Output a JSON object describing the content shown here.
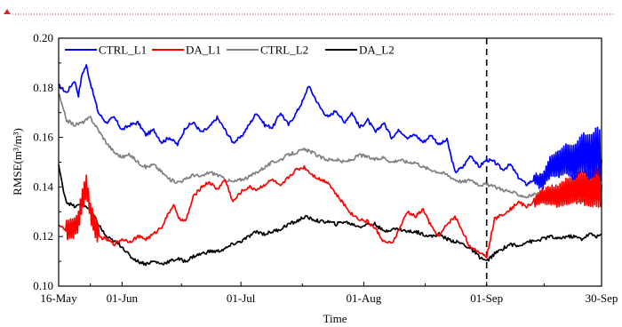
{
  "chart_data": {
    "type": "line",
    "xlabel": "Time",
    "ylabel": "RMSE(m³/m³)",
    "ylim": [
      0.1,
      0.2
    ],
    "yticks": [
      0.1,
      0.12,
      0.14,
      0.16,
      0.18,
      0.2
    ],
    "ytick_labels": [
      "0.10",
      "0.12",
      "0.14",
      "0.16",
      "0.18",
      "0.20"
    ],
    "xlim": [
      "16-May",
      "30-Sep"
    ],
    "xticks": [
      {
        "x": 0,
        "label": "16-May"
      },
      {
        "x": 16,
        "label": "01-Jun"
      },
      {
        "x": 46,
        "label": "01-Jul"
      },
      {
        "x": 77,
        "label": "01-Aug"
      },
      {
        "x": 108,
        "label": "01-Sep"
      },
      {
        "x": 137,
        "label": "30-Sep"
      }
    ],
    "vline": {
      "x": 108,
      "label": "01-Sep"
    },
    "grid": false,
    "legend": {
      "placement": "top",
      "orientation": "horizontal"
    },
    "series": [
      {
        "name": "CTRL_L1",
        "color": "#0000ff",
        "points": [
          [
            0,
            0.181
          ],
          [
            2,
            0.178
          ],
          [
            4,
            0.183
          ],
          [
            5,
            0.177
          ],
          [
            6,
            0.186
          ],
          [
            7,
            0.189
          ],
          [
            8,
            0.182
          ],
          [
            10,
            0.17
          ],
          [
            12,
            0.166
          ],
          [
            14,
            0.168
          ],
          [
            16,
            0.163
          ],
          [
            18,
            0.165
          ],
          [
            20,
            0.166
          ],
          [
            22,
            0.161
          ],
          [
            24,
            0.163
          ],
          [
            26,
            0.158
          ],
          [
            28,
            0.16
          ],
          [
            30,
            0.157
          ],
          [
            32,
            0.164
          ],
          [
            34,
            0.166
          ],
          [
            36,
            0.162
          ],
          [
            38,
            0.164
          ],
          [
            40,
            0.168
          ],
          [
            42,
            0.163
          ],
          [
            44,
            0.158
          ],
          [
            46,
            0.16
          ],
          [
            48,
            0.165
          ],
          [
            50,
            0.17
          ],
          [
            52,
            0.165
          ],
          [
            54,
            0.164
          ],
          [
            56,
            0.17
          ],
          [
            58,
            0.165
          ],
          [
            60,
            0.17
          ],
          [
            62,
            0.176
          ],
          [
            63,
            0.181
          ],
          [
            64,
            0.178
          ],
          [
            66,
            0.172
          ],
          [
            68,
            0.168
          ],
          [
            70,
            0.171
          ],
          [
            72,
            0.166
          ],
          [
            74,
            0.17
          ],
          [
            76,
            0.164
          ],
          [
            78,
            0.167
          ],
          [
            80,
            0.162
          ],
          [
            82,
            0.166
          ],
          [
            84,
            0.16
          ],
          [
            86,
            0.163
          ],
          [
            88,
            0.16
          ],
          [
            90,
            0.161
          ],
          [
            92,
            0.158
          ],
          [
            94,
            0.161
          ],
          [
            96,
            0.157
          ],
          [
            98,
            0.159
          ],
          [
            100,
            0.146
          ],
          [
            102,
            0.148
          ],
          [
            104,
            0.153
          ],
          [
            106,
            0.148
          ],
          [
            108,
            0.151
          ],
          [
            110,
            0.15
          ],
          [
            112,
            0.147
          ],
          [
            114,
            0.149
          ],
          [
            116,
            0.144
          ],
          [
            118,
            0.141
          ],
          [
            120,
            0.143
          ],
          [
            122,
            0.142
          ],
          [
            124,
            0.148
          ],
          [
            126,
            0.149
          ],
          [
            128,
            0.152
          ],
          [
            130,
            0.15
          ],
          [
            132,
            0.154
          ],
          [
            134,
            0.152
          ],
          [
            136,
            0.155
          ],
          [
            137,
            0.151
          ]
        ],
        "oscillation": [
          {
            "from": 120,
            "to": 137,
            "amp0": 0.002,
            "amp1": 0.01
          }
        ]
      },
      {
        "name": "DA_L1",
        "color": "#ff0000",
        "points": [
          [
            0,
            0.125
          ],
          [
            2,
            0.122
          ],
          [
            4,
            0.124
          ],
          [
            5,
            0.126
          ],
          [
            6,
            0.135
          ],
          [
            7,
            0.141
          ],
          [
            8,
            0.13
          ],
          [
            10,
            0.12
          ],
          [
            12,
            0.119
          ],
          [
            14,
            0.117
          ],
          [
            16,
            0.119
          ],
          [
            18,
            0.118
          ],
          [
            20,
            0.12
          ],
          [
            22,
            0.119
          ],
          [
            24,
            0.121
          ],
          [
            26,
            0.124
          ],
          [
            28,
            0.13
          ],
          [
            29,
            0.133
          ],
          [
            30,
            0.128
          ],
          [
            32,
            0.126
          ],
          [
            34,
            0.136
          ],
          [
            36,
            0.14
          ],
          [
            38,
            0.142
          ],
          [
            40,
            0.139
          ],
          [
            42,
            0.143
          ],
          [
            44,
            0.134
          ],
          [
            46,
            0.138
          ],
          [
            48,
            0.14
          ],
          [
            50,
            0.139
          ],
          [
            52,
            0.141
          ],
          [
            54,
            0.143
          ],
          [
            56,
            0.14
          ],
          [
            58,
            0.144
          ],
          [
            60,
            0.147
          ],
          [
            62,
            0.148
          ],
          [
            64,
            0.145
          ],
          [
            66,
            0.143
          ],
          [
            68,
            0.142
          ],
          [
            70,
            0.137
          ],
          [
            72,
            0.133
          ],
          [
            74,
            0.129
          ],
          [
            76,
            0.127
          ],
          [
            78,
            0.126
          ],
          [
            80,
            0.123
          ],
          [
            82,
            0.118
          ],
          [
            84,
            0.117
          ],
          [
            86,
            0.123
          ],
          [
            88,
            0.13
          ],
          [
            90,
            0.128
          ],
          [
            92,
            0.131
          ],
          [
            94,
            0.124
          ],
          [
            96,
            0.12
          ],
          [
            98,
            0.125
          ],
          [
            100,
            0.128
          ],
          [
            102,
            0.122
          ],
          [
            104,
            0.115
          ],
          [
            106,
            0.114
          ],
          [
            108,
            0.112
          ],
          [
            110,
            0.127
          ],
          [
            112,
            0.129
          ],
          [
            114,
            0.131
          ],
          [
            116,
            0.134
          ],
          [
            118,
            0.132
          ],
          [
            120,
            0.134
          ],
          [
            122,
            0.136
          ],
          [
            124,
            0.137
          ],
          [
            126,
            0.136
          ],
          [
            128,
            0.138
          ],
          [
            130,
            0.139
          ],
          [
            132,
            0.14
          ],
          [
            134,
            0.139
          ],
          [
            136,
            0.14
          ],
          [
            137,
            0.141
          ]
        ],
        "oscillation": [
          {
            "from": 2,
            "to": 10,
            "amp0": 0.004,
            "amp1": 0.004
          },
          {
            "from": 120,
            "to": 137,
            "amp0": 0.002,
            "amp1": 0.008
          }
        ]
      },
      {
        "name": "CTRL_L2",
        "color": "#808080",
        "points": [
          [
            0,
            0.178
          ],
          [
            1,
            0.172
          ],
          [
            2,
            0.167
          ],
          [
            4,
            0.165
          ],
          [
            6,
            0.166
          ],
          [
            8,
            0.168
          ],
          [
            10,
            0.163
          ],
          [
            12,
            0.158
          ],
          [
            14,
            0.154
          ],
          [
            16,
            0.152
          ],
          [
            18,
            0.153
          ],
          [
            20,
            0.15
          ],
          [
            22,
            0.148
          ],
          [
            24,
            0.149
          ],
          [
            26,
            0.146
          ],
          [
            28,
            0.143
          ],
          [
            30,
            0.142
          ],
          [
            32,
            0.143
          ],
          [
            34,
            0.145
          ],
          [
            36,
            0.144
          ],
          [
            38,
            0.146
          ],
          [
            40,
            0.145
          ],
          [
            42,
            0.143
          ],
          [
            44,
            0.142
          ],
          [
            46,
            0.143
          ],
          [
            48,
            0.144
          ],
          [
            50,
            0.146
          ],
          [
            52,
            0.148
          ],
          [
            54,
            0.15
          ],
          [
            56,
            0.151
          ],
          [
            58,
            0.153
          ],
          [
            60,
            0.154
          ],
          [
            62,
            0.155
          ],
          [
            64,
            0.154
          ],
          [
            66,
            0.152
          ],
          [
            68,
            0.151
          ],
          [
            70,
            0.151
          ],
          [
            72,
            0.15
          ],
          [
            74,
            0.151
          ],
          [
            76,
            0.153
          ],
          [
            78,
            0.152
          ],
          [
            80,
            0.151
          ],
          [
            82,
            0.152
          ],
          [
            84,
            0.15
          ],
          [
            86,
            0.151
          ],
          [
            88,
            0.15
          ],
          [
            90,
            0.15
          ],
          [
            92,
            0.148
          ],
          [
            94,
            0.147
          ],
          [
            96,
            0.146
          ],
          [
            98,
            0.145
          ],
          [
            100,
            0.143
          ],
          [
            102,
            0.142
          ],
          [
            104,
            0.143
          ],
          [
            106,
            0.141
          ],
          [
            108,
            0.141
          ],
          [
            110,
            0.14
          ],
          [
            112,
            0.139
          ],
          [
            114,
            0.138
          ],
          [
            116,
            0.137
          ],
          [
            118,
            0.136
          ],
          [
            120,
            0.137
          ],
          [
            122,
            0.135
          ],
          [
            124,
            0.135
          ],
          [
            126,
            0.136
          ],
          [
            128,
            0.134
          ],
          [
            130,
            0.135
          ],
          [
            132,
            0.135
          ],
          [
            134,
            0.134
          ],
          [
            136,
            0.135
          ],
          [
            137,
            0.135
          ]
        ]
      },
      {
        "name": "DA_L2",
        "color": "#000000",
        "points": [
          [
            0,
            0.149
          ],
          [
            1,
            0.14
          ],
          [
            2,
            0.134
          ],
          [
            4,
            0.132
          ],
          [
            6,
            0.133
          ],
          [
            8,
            0.131
          ],
          [
            10,
            0.125
          ],
          [
            12,
            0.12
          ],
          [
            14,
            0.118
          ],
          [
            16,
            0.116
          ],
          [
            18,
            0.112
          ],
          [
            20,
            0.11
          ],
          [
            22,
            0.109
          ],
          [
            24,
            0.11
          ],
          [
            26,
            0.109
          ],
          [
            28,
            0.11
          ],
          [
            30,
            0.111
          ],
          [
            32,
            0.11
          ],
          [
            34,
            0.112
          ],
          [
            36,
            0.113
          ],
          [
            38,
            0.114
          ],
          [
            40,
            0.114
          ],
          [
            42,
            0.115
          ],
          [
            44,
            0.117
          ],
          [
            46,
            0.118
          ],
          [
            48,
            0.12
          ],
          [
            50,
            0.122
          ],
          [
            52,
            0.121
          ],
          [
            54,
            0.122
          ],
          [
            56,
            0.123
          ],
          [
            58,
            0.125
          ],
          [
            60,
            0.126
          ],
          [
            62,
            0.128
          ],
          [
            64,
            0.127
          ],
          [
            66,
            0.126
          ],
          [
            68,
            0.126
          ],
          [
            70,
            0.125
          ],
          [
            72,
            0.126
          ],
          [
            74,
            0.125
          ],
          [
            76,
            0.124
          ],
          [
            78,
            0.125
          ],
          [
            80,
            0.125
          ],
          [
            82,
            0.122
          ],
          [
            84,
            0.123
          ],
          [
            86,
            0.123
          ],
          [
            88,
            0.122
          ],
          [
            90,
            0.122
          ],
          [
            92,
            0.121
          ],
          [
            94,
            0.12
          ],
          [
            96,
            0.121
          ],
          [
            98,
            0.119
          ],
          [
            100,
            0.118
          ],
          [
            102,
            0.117
          ],
          [
            104,
            0.115
          ],
          [
            106,
            0.112
          ],
          [
            108,
            0.11
          ],
          [
            110,
            0.113
          ],
          [
            112,
            0.115
          ],
          [
            114,
            0.117
          ],
          [
            116,
            0.116
          ],
          [
            118,
            0.118
          ],
          [
            120,
            0.118
          ],
          [
            122,
            0.119
          ],
          [
            124,
            0.12
          ],
          [
            126,
            0.119
          ],
          [
            128,
            0.12
          ],
          [
            130,
            0.12
          ],
          [
            132,
            0.119
          ],
          [
            134,
            0.121
          ],
          [
            136,
            0.12
          ],
          [
            137,
            0.121
          ]
        ]
      }
    ]
  }
}
